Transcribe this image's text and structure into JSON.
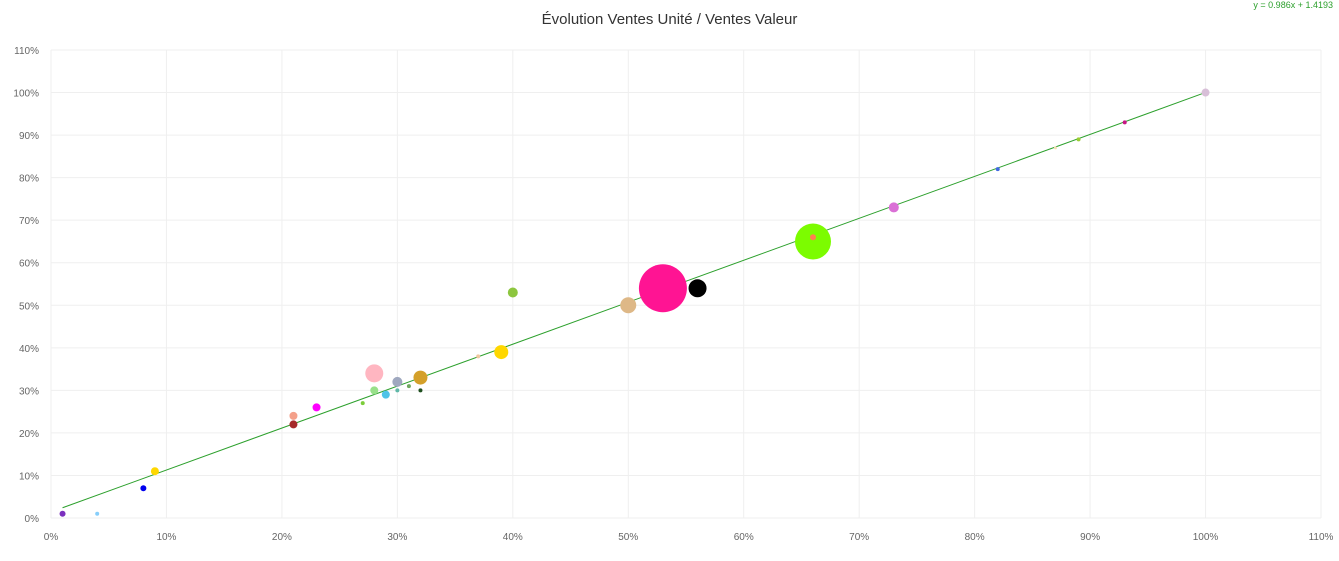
{
  "chart_data": {
    "type": "scatter",
    "title": "Évolution Ventes Unité / Ventes Valeur",
    "regression_equation": "y = 0.986x + 1.4193",
    "xlim": [
      0,
      110
    ],
    "ylim": [
      0,
      110
    ],
    "x_ticks": [
      "0%",
      "10%",
      "20%",
      "30%",
      "40%",
      "50%",
      "60%",
      "70%",
      "80%",
      "90%",
      "100%",
      "110%"
    ],
    "y_ticks": [
      "0%",
      "10%",
      "20%",
      "30%",
      "40%",
      "50%",
      "60%",
      "70%",
      "80%",
      "90%",
      "100%",
      "110%"
    ],
    "grid": true,
    "trendline": {
      "slope": 0.986,
      "intercept": 1.4193,
      "x_range": [
        1,
        100
      ],
      "color": "#2ca02c"
    },
    "points": [
      {
        "x": 1,
        "y": 1,
        "size": 3,
        "color": "#7b2fbe"
      },
      {
        "x": 4,
        "y": 1,
        "size": 2,
        "color": "#87cefa"
      },
      {
        "x": 8,
        "y": 7,
        "size": 3,
        "color": "#0000ee"
      },
      {
        "x": 9,
        "y": 11,
        "size": 4,
        "color": "#ffd700"
      },
      {
        "x": 21,
        "y": 24,
        "size": 4,
        "color": "#f4a08a"
      },
      {
        "x": 21,
        "y": 22,
        "size": 4,
        "color": "#a52a2a"
      },
      {
        "x": 23,
        "y": 26,
        "size": 4,
        "color": "#ff00ff"
      },
      {
        "x": 27,
        "y": 27,
        "size": 2,
        "color": "#7ccd3a"
      },
      {
        "x": 28,
        "y": 34,
        "size": 9,
        "color": "#ffb6c1"
      },
      {
        "x": 28,
        "y": 30,
        "size": 4,
        "color": "#98e08a"
      },
      {
        "x": 29,
        "y": 29,
        "size": 4,
        "color": "#4fc3e8"
      },
      {
        "x": 30,
        "y": 32,
        "size": 5,
        "color": "#9fa8bf"
      },
      {
        "x": 30,
        "y": 30,
        "size": 2,
        "color": "#5fb8a8"
      },
      {
        "x": 31,
        "y": 31,
        "size": 2,
        "color": "#6fa85f"
      },
      {
        "x": 32,
        "y": 33,
        "size": 7,
        "color": "#d4a02a"
      },
      {
        "x": 32,
        "y": 30,
        "size": 2,
        "color": "#1f4f1f"
      },
      {
        "x": 37,
        "y": 38,
        "size": 2,
        "color": "#f0c8a0"
      },
      {
        "x": 39,
        "y": 39,
        "size": 7,
        "color": "#ffd700"
      },
      {
        "x": 40,
        "y": 53,
        "size": 5,
        "color": "#8dc63f"
      },
      {
        "x": 50,
        "y": 50,
        "size": 8,
        "color": "#deb887"
      },
      {
        "x": 53,
        "y": 54,
        "size": 24,
        "color": "#ff1493"
      },
      {
        "x": 56,
        "y": 54,
        "size": 9,
        "color": "#000000"
      },
      {
        "x": 66,
        "y": 65,
        "size": 18,
        "color": "#7cfc00"
      },
      {
        "x": 66,
        "y": 66,
        "size": 3,
        "color": "#ff7f50"
      },
      {
        "x": 73,
        "y": 73,
        "size": 5,
        "color": "#da70d6"
      },
      {
        "x": 82,
        "y": 82,
        "size": 2,
        "color": "#4169e1"
      },
      {
        "x": 87,
        "y": 87,
        "size": 1.5,
        "color": "#f5deb3"
      },
      {
        "x": 89,
        "y": 89,
        "size": 2,
        "color": "#9acd32"
      },
      {
        "x": 93,
        "y": 93,
        "size": 2,
        "color": "#c71585"
      },
      {
        "x": 100,
        "y": 100,
        "size": 4,
        "color": "#d8bfd8"
      }
    ]
  }
}
